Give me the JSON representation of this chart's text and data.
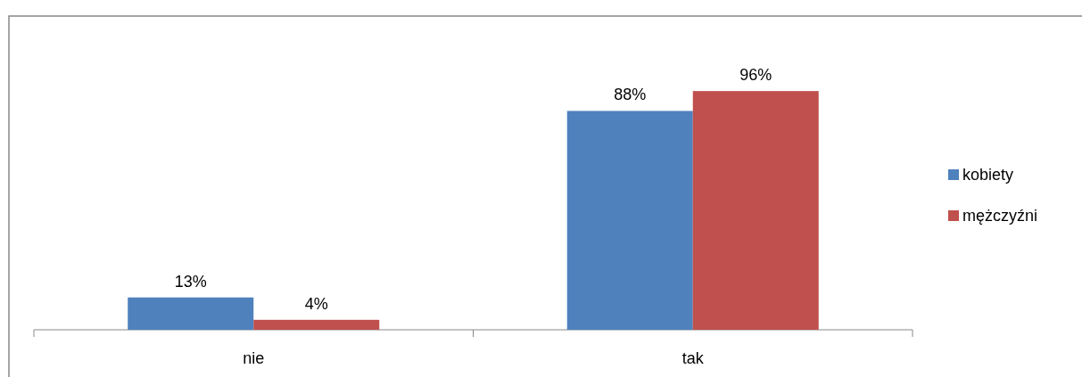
{
  "chart_data": {
    "type": "bar",
    "categories": [
      "nie",
      "tak"
    ],
    "series": [
      {
        "name": "kobiety",
        "color": "#4f81bd",
        "values": [
          13,
          88
        ],
        "value_labels": [
          "13%",
          "88%"
        ]
      },
      {
        "name": "mężczyźni",
        "color": "#c0504d",
        "values": [
          4,
          96
        ],
        "value_labels": [
          "4%",
          "96%"
        ]
      }
    ],
    "legend": "right"
  }
}
